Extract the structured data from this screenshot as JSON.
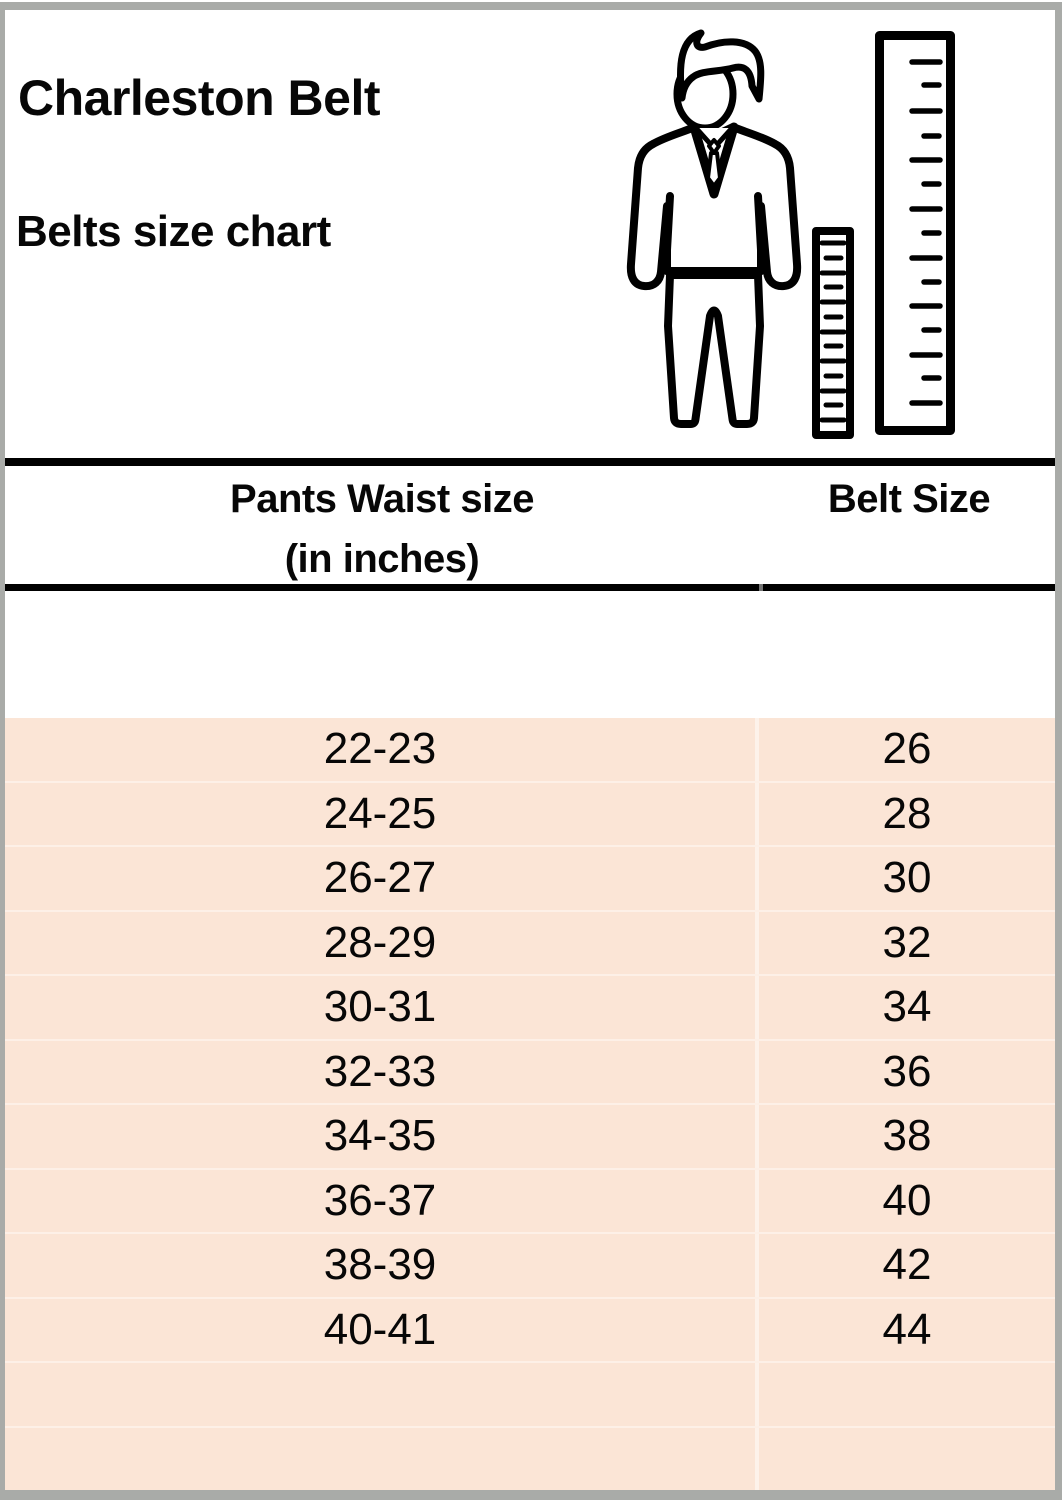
{
  "page": {
    "title": "Charleston Belt",
    "subtitle": "Belts size chart"
  },
  "icons": {
    "figure": "man-with-measuring-rulers"
  },
  "table": {
    "columns": [
      {
        "label_line1": "Pants Waist size",
        "label_line2": "(in inches)"
      },
      {
        "label_line1": "Belt Size",
        "label_line2": ""
      }
    ],
    "rows": [
      {
        "waist": "22-23",
        "belt": "26"
      },
      {
        "waist": "24-25",
        "belt": "28"
      },
      {
        "waist": "26-27",
        "belt": "30"
      },
      {
        "waist": "28-29",
        "belt": "32"
      },
      {
        "waist": "30-31",
        "belt": "34"
      },
      {
        "waist": "32-33",
        "belt": "36"
      },
      {
        "waist": "34-35",
        "belt": "38"
      },
      {
        "waist": "36-37",
        "belt": "40"
      },
      {
        "waist": "38-39",
        "belt": "42"
      },
      {
        "waist": "40-41",
        "belt": "44"
      }
    ],
    "empty_rows": 2
  },
  "colors": {
    "row_background": "#fbe5d6",
    "row_separator": "#fdf0e7",
    "column_divider": "#fdf2ea",
    "frame": "#a9aba8",
    "rule": "#000000",
    "text": "#070707"
  }
}
